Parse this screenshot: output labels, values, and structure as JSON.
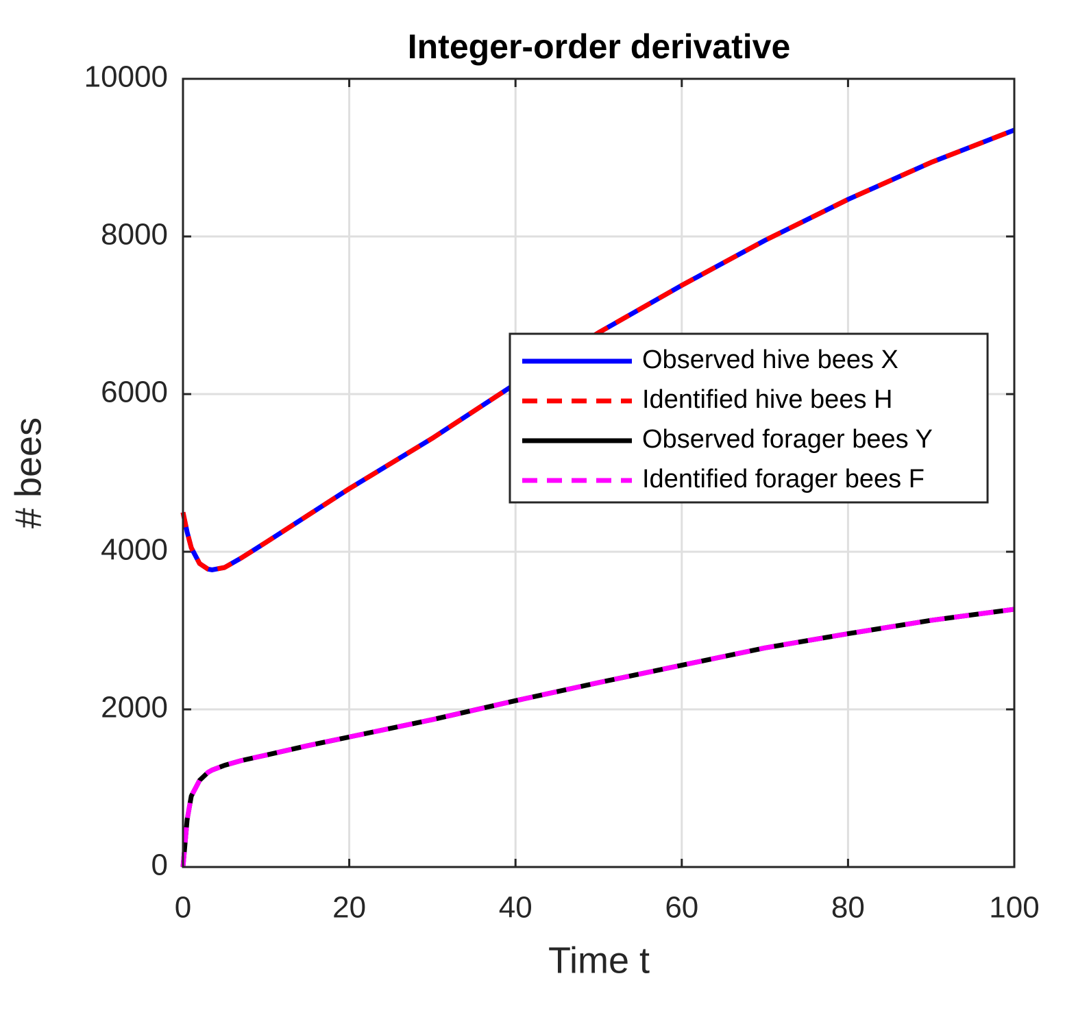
{
  "chart_data": {
    "type": "line",
    "title": "Integer-order derivative",
    "x_label": "Time t",
    "y_label": "# bees",
    "x": [
      0,
      0.5,
      1,
      2,
      3,
      3.5,
      5,
      7,
      10,
      15,
      20,
      30,
      40,
      50,
      60,
      70,
      80,
      90,
      100
    ],
    "series": [
      {
        "name": "Observed hive bees X",
        "color": "#0000ff",
        "line_style": "solid",
        "values": [
          4500,
          4250,
          4050,
          3850,
          3780,
          3770,
          3800,
          3920,
          4120,
          4460,
          4800,
          5440,
          6130,
          6780,
          7380,
          7950,
          8470,
          8940,
          9350
        ]
      },
      {
        "name": "Identified hive bees H",
        "color": "#ff0000",
        "line_style": "dashed",
        "values": [
          4500,
          4250,
          4050,
          3850,
          3780,
          3770,
          3800,
          3920,
          4120,
          4460,
          4800,
          5440,
          6130,
          6780,
          7380,
          7950,
          8470,
          8940,
          9350
        ]
      },
      {
        "name": "Observed forager bees Y",
        "color": "#000000",
        "line_style": "solid",
        "values": [
          0,
          600,
          900,
          1100,
          1200,
          1230,
          1290,
          1350,
          1420,
          1540,
          1650,
          1870,
          2110,
          2340,
          2560,
          2780,
          2960,
          3130,
          3270
        ]
      },
      {
        "name": "Identified forager bees F",
        "color": "#ff00ff",
        "line_style": "dashed",
        "values": [
          0,
          600,
          900,
          1100,
          1200,
          1230,
          1290,
          1350,
          1420,
          1540,
          1650,
          1870,
          2110,
          2340,
          2560,
          2780,
          2960,
          3130,
          3270
        ]
      }
    ],
    "xlim": [
      0,
      100
    ],
    "xticks": [
      0,
      20,
      40,
      60,
      80,
      100
    ],
    "ylim": [
      0,
      10000
    ],
    "yticks": [
      0,
      2000,
      4000,
      6000,
      8000,
      10000
    ],
    "grid": true,
    "legend": "east"
  }
}
